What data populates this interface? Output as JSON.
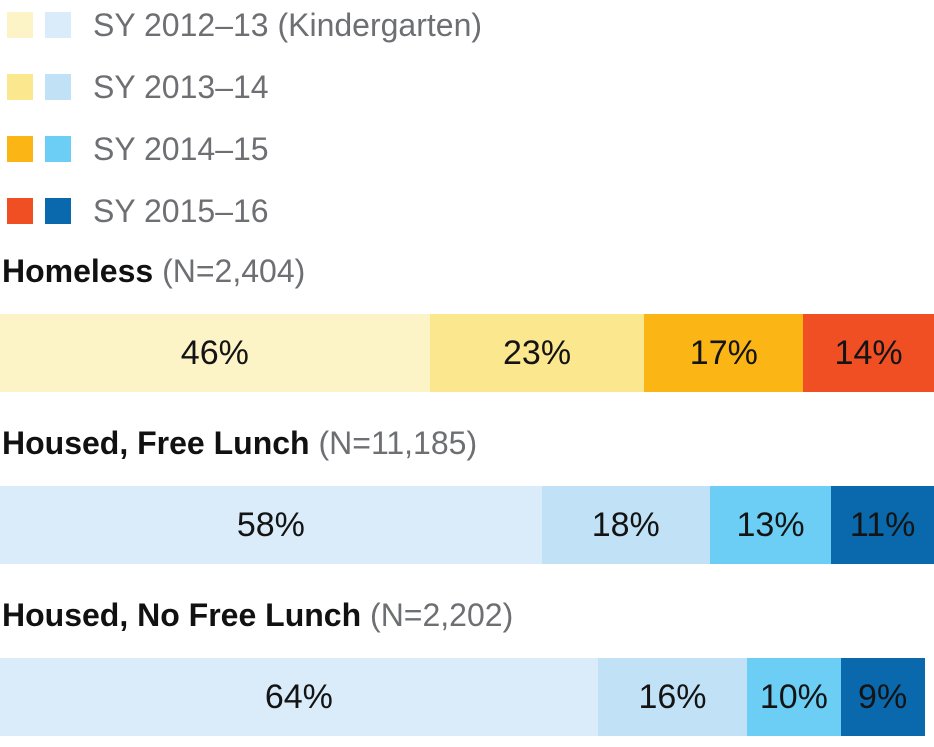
{
  "chart_data": {
    "type": "bar",
    "subtype": "stacked-horizontal-100percent",
    "value_unit": "percent",
    "legend_position": "top-left",
    "legend": [
      {
        "label": "SY 2012–13 (Kindergarten)",
        "warm_color": "#FCF3C6",
        "cool_color": "#DAEBF9"
      },
      {
        "label": "SY 2013–14",
        "warm_color": "#FBE78E",
        "cool_color": "#C1E1F6"
      },
      {
        "label": "SY 2014–15",
        "warm_color": "#FBB616",
        "cool_color": "#6CCEF4"
      },
      {
        "label": "SY 2015–16",
        "warm_color": "#F04E23",
        "cool_color": "#0A69AD"
      }
    ],
    "groups": [
      {
        "name": "Homeless",
        "n_label": "(N=2,404)",
        "palette": "warm",
        "values": [
          46,
          23,
          17,
          14
        ],
        "labels": [
          "46%",
          "23%",
          "17%",
          "14%"
        ]
      },
      {
        "name": "Housed, Free Lunch",
        "n_label": "(N=11,185)",
        "palette": "cool",
        "values": [
          58,
          18,
          13,
          11
        ],
        "labels": [
          "58%",
          "18%",
          "13%",
          "11%"
        ]
      },
      {
        "name": "Housed, No Free Lunch",
        "n_label": "(N=2,202)",
        "palette": "cool",
        "values": [
          64,
          16,
          10,
          9
        ],
        "labels": [
          "64%",
          "16%",
          "10%",
          "9%"
        ]
      }
    ]
  },
  "colors": {
    "background": "#FFFFFF",
    "label_text": "#141414",
    "header_bold_text": "#111111",
    "muted_text": "#6E6F72",
    "warm_palette": [
      "#FCF3C6",
      "#FBE78E",
      "#FBB616",
      "#F04E23"
    ],
    "cool_palette": [
      "#DAEBF9",
      "#C1E1F6",
      "#6CCEF4",
      "#0A69AD"
    ]
  }
}
